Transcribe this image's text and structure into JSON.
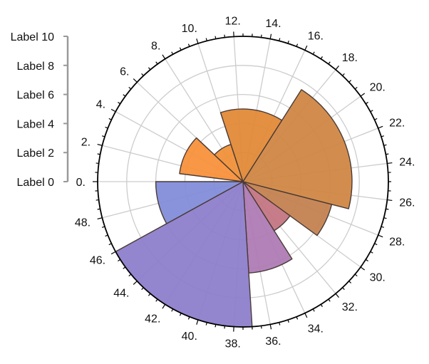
{
  "chart_data": {
    "type": "polar-bar",
    "title": "",
    "angle_axis": {
      "min": 0,
      "max": 50,
      "direction": "clockwise-from-left",
      "tick_labels": [
        "0.",
        "2.",
        "4.",
        "6.",
        "8.",
        "10.",
        "12.",
        "14.",
        "16.",
        "18.",
        "20.",
        "22.",
        "24.",
        "26.",
        "28.",
        "30.",
        "32.",
        "34.",
        "36.",
        "38.",
        "40.",
        "42.",
        "44.",
        "46.",
        "48."
      ],
      "tick_values": [
        0,
        2,
        4,
        6,
        8,
        10,
        12,
        14,
        16,
        18,
        20,
        22,
        24,
        26,
        28,
        30,
        32,
        34,
        36,
        38,
        40,
        42,
        44,
        46,
        48
      ]
    },
    "radial_axis": {
      "min": 0,
      "max": 10,
      "tick_labels": [
        "Label 0",
        "Label 2",
        "Label 4",
        "Label 6",
        "Label 8",
        "Label 10"
      ],
      "tick_values": [
        0,
        2,
        4,
        6,
        8,
        10
      ]
    },
    "grid": true,
    "bars": [
      {
        "start": 0,
        "end": 1,
        "value": 0.45,
        "color": "#dd8a3f"
      },
      {
        "start": 1,
        "end": 6,
        "value": 4.4,
        "color": "#f78f37"
      },
      {
        "start": 6,
        "end": 10,
        "value": 2.7,
        "color": "#f08f35"
      },
      {
        "start": 10,
        "end": 17,
        "value": 5.0,
        "color": "#e18834"
      },
      {
        "start": 17,
        "end": 27,
        "value": 7.5,
        "color": "#cf8441"
      },
      {
        "start": 27,
        "end": 30,
        "value": 6.3,
        "color": "#c37f4c"
      },
      {
        "start": 30,
        "end": 33,
        "value": 4.0,
        "color": "#c27380"
      },
      {
        "start": 33,
        "end": 37,
        "value": 6.3,
        "color": "#ac78b4"
      },
      {
        "start": 37,
        "end": 46,
        "value": 10.0,
        "color": "#8c7ccb"
      },
      {
        "start": 46,
        "end": 50,
        "value": 6.0,
        "color": "#7f8bd8"
      }
    ]
  }
}
